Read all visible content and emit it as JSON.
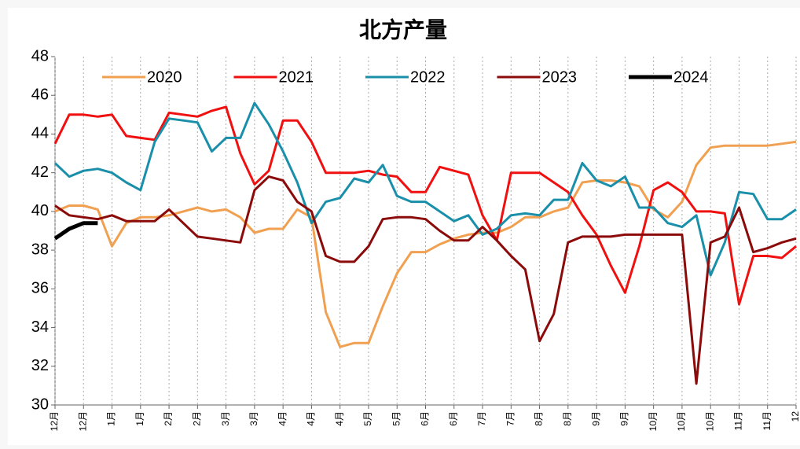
{
  "chart_data": {
    "type": "line",
    "title": "北方产量",
    "categories": [
      "12月",
      null,
      "12月",
      null,
      "1月",
      null,
      "1月",
      null,
      "2月",
      null,
      "2月",
      null,
      "3月",
      null,
      "3月",
      null,
      "4月",
      null,
      "4月",
      null,
      "4月",
      null,
      "5月",
      null,
      "5月",
      null,
      "6月",
      null,
      "6月",
      null,
      "7月",
      null,
      "7月",
      null,
      "8月",
      null,
      "8月",
      null,
      "9月",
      null,
      "9月",
      null,
      "10月",
      null,
      "10月",
      null,
      "10月",
      null,
      "11月",
      null,
      "11月",
      null,
      "12"
    ],
    "ylim": [
      30,
      48
    ],
    "yticks": [
      30,
      32,
      34,
      36,
      38,
      40,
      42,
      44,
      46,
      48
    ],
    "grid_x": true,
    "legend": "top",
    "series": [
      {
        "name": "2020",
        "color": "#f0a050",
        "values": [
          40.0,
          40.3,
          40.3,
          40.1,
          38.2,
          39.4,
          39.7,
          39.7,
          39.8,
          40.0,
          40.2,
          40.0,
          40.1,
          39.7,
          38.9,
          39.1,
          39.1,
          40.1,
          39.7,
          34.8,
          33.0,
          33.2,
          33.2,
          35.1,
          36.8,
          37.9,
          37.9,
          38.3,
          38.6,
          38.8,
          38.9,
          38.9,
          39.2,
          39.7,
          39.7,
          40.0,
          40.2,
          41.5,
          41.6,
          41.6,
          41.5,
          41.3,
          40.1,
          39.7,
          40.5,
          42.4,
          43.3,
          43.4,
          43.4,
          43.4,
          43.4,
          43.5,
          43.6
        ]
      },
      {
        "name": "2021",
        "color": "#f01010",
        "values": [
          43.5,
          45.0,
          45.0,
          44.9,
          45.0,
          43.9,
          43.8,
          43.7,
          45.1,
          45.0,
          44.9,
          45.2,
          45.4,
          43.0,
          41.4,
          42.1,
          44.7,
          44.7,
          43.6,
          42.0,
          42.0,
          42.0,
          42.1,
          41.9,
          41.8,
          41.0,
          41.0,
          42.3,
          42.1,
          41.9,
          39.8,
          38.5,
          42.0,
          42.0,
          42.0,
          41.5,
          41.0,
          39.8,
          38.8,
          37.2,
          35.8,
          38.2,
          41.1,
          41.5,
          41.0,
          40.0,
          40.0,
          39.9,
          35.2,
          37.7,
          37.7,
          37.6,
          38.2
        ]
      },
      {
        "name": "2022",
        "color": "#1a8faa",
        "values": [
          42.5,
          41.8,
          42.1,
          42.2,
          42.0,
          41.5,
          41.1,
          43.6,
          44.8,
          44.7,
          44.6,
          43.1,
          43.8,
          43.8,
          45.6,
          44.5,
          43.1,
          41.5,
          39.4,
          40.5,
          40.7,
          41.7,
          41.5,
          42.4,
          40.8,
          40.5,
          40.5,
          40.0,
          39.5,
          39.8,
          38.8,
          39.1,
          39.8,
          39.9,
          39.8,
          40.6,
          40.6,
          42.5,
          41.6,
          41.3,
          41.8,
          40.2,
          40.2,
          39.4,
          39.2,
          39.8,
          36.7,
          38.4,
          41.0,
          40.9,
          39.6,
          39.6,
          40.1
        ]
      },
      {
        "name": "2023",
        "color": "#8b0a0a",
        "values": [
          40.3,
          39.8,
          39.7,
          39.6,
          39.8,
          39.5,
          39.5,
          39.5,
          40.1,
          39.4,
          38.7,
          38.6,
          38.5,
          38.4,
          41.1,
          41.8,
          41.6,
          40.5,
          40.0,
          37.7,
          37.4,
          37.4,
          38.2,
          39.6,
          39.7,
          39.7,
          39.6,
          39.0,
          38.5,
          38.5,
          39.2,
          38.5,
          37.7,
          37.0,
          33.3,
          34.7,
          38.4,
          38.7,
          38.7,
          38.7,
          38.8,
          38.8,
          38.8,
          38.8,
          38.8,
          31.1,
          38.4,
          38.7,
          40.2,
          37.9,
          38.1,
          38.4,
          38.6
        ]
      },
      {
        "name": "2024",
        "color": "#000000",
        "values": [
          38.6,
          39.1,
          39.4,
          39.4,
          null,
          null,
          null,
          null,
          null,
          null,
          null,
          null,
          null,
          null,
          null,
          null,
          null,
          null,
          null,
          null,
          null,
          null,
          null,
          null,
          null,
          null,
          null,
          null,
          null,
          null,
          null,
          null,
          null,
          null,
          null,
          null,
          null,
          null,
          null,
          null,
          null,
          null,
          null,
          null,
          null,
          null,
          null,
          null,
          null,
          null,
          null,
          null,
          null
        ]
      }
    ]
  }
}
